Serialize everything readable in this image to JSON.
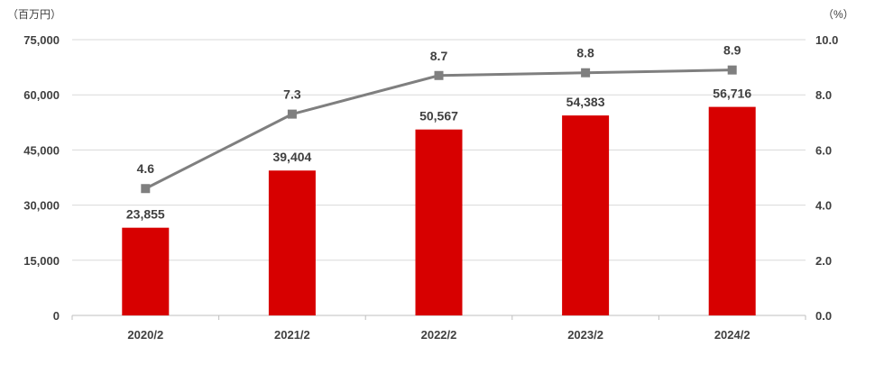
{
  "chart_data": {
    "type": "bar",
    "categories": [
      "2020/2",
      "2021/2",
      "2022/2",
      "2023/2",
      "2024/2"
    ],
    "series": [
      {
        "type": "bar",
        "axis": "left",
        "values": [
          23855,
          39404,
          50567,
          54383,
          56716
        ],
        "labels": [
          "23,855",
          "39,404",
          "50,567",
          "54,383",
          "56,716"
        ],
        "color": "#d70000"
      },
      {
        "type": "line",
        "axis": "right",
        "values": [
          4.6,
          7.3,
          8.7,
          8.8,
          8.9
        ],
        "labels": [
          "4.6",
          "7.3",
          "8.7",
          "8.8",
          "8.9"
        ],
        "color": "#7f7f7f",
        "marker": "square"
      }
    ],
    "y_left": {
      "unit_label": "（百万円）",
      "ylim": [
        0,
        75000
      ],
      "ticks": [
        "0",
        "15,000",
        "30,000",
        "45,000",
        "60,000",
        "75,000"
      ]
    },
    "y_right": {
      "unit_label": "（%）",
      "ylim": [
        0,
        10
      ],
      "ticks": [
        "0.0",
        "2.0",
        "4.0",
        "6.0",
        "8.0",
        "10.0"
      ]
    },
    "grid": true,
    "legend": "none"
  }
}
